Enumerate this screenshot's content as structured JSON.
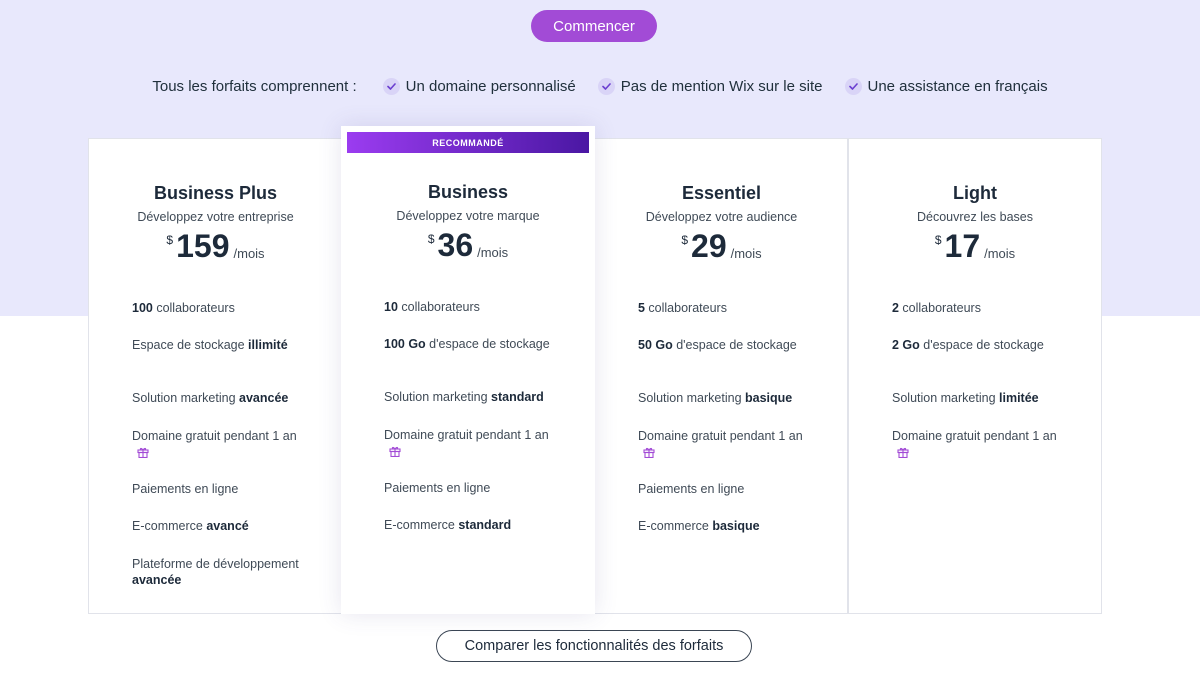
{
  "header": {
    "start_label": "Commencer",
    "includes_lead": "Tous les forfaits comprennent :",
    "includes": [
      "Un domaine personnalisé",
      "Pas de mention Wix sur le site",
      "Une assistance en français"
    ]
  },
  "recommended_badge": "RECOMMANDÉ",
  "currency": "$",
  "plans": [
    {
      "name": "Business Plus",
      "tagline": "Développez votre entreprise",
      "price": "159",
      "period": "/mois",
      "features": [
        {
          "pre": "",
          "bold": "100",
          "post": " collaborateurs"
        },
        {
          "pre": "Espace de stockage ",
          "bold": "illimité",
          "post": ""
        },
        {
          "pre": "Solution marketing ",
          "bold": "avancée",
          "post": ""
        },
        {
          "pre": "Domaine gratuit pendant 1 an",
          "bold": "",
          "post": ""
        },
        {
          "pre": "Paiements en ligne",
          "bold": "",
          "post": ""
        },
        {
          "pre": "E-commerce ",
          "bold": "avancé",
          "post": ""
        },
        {
          "pre": "Plateforme de développement ",
          "bold": "avancée",
          "post": ""
        }
      ]
    },
    {
      "name": "Business",
      "tagline": "Développez votre marque",
      "price": "36",
      "period": "/mois",
      "features": [
        {
          "pre": "",
          "bold": "10",
          "post": " collaborateurs"
        },
        {
          "pre": "",
          "bold": "100 Go",
          "post": " d'espace de stockage"
        },
        {
          "pre": "Solution marketing ",
          "bold": "standard",
          "post": ""
        },
        {
          "pre": "Domaine gratuit pendant 1 an",
          "bold": "",
          "post": ""
        },
        {
          "pre": "Paiements en ligne",
          "bold": "",
          "post": ""
        },
        {
          "pre": "E-commerce ",
          "bold": "standard",
          "post": ""
        }
      ]
    },
    {
      "name": "Essentiel",
      "tagline": "Développez votre audience",
      "price": "29",
      "period": "/mois",
      "features": [
        {
          "pre": "",
          "bold": "5",
          "post": " collaborateurs"
        },
        {
          "pre": "",
          "bold": "50 Go",
          "post": " d'espace de stockage"
        },
        {
          "pre": "Solution marketing ",
          "bold": "basique",
          "post": ""
        },
        {
          "pre": "Domaine gratuit pendant 1 an",
          "bold": "",
          "post": ""
        },
        {
          "pre": "Paiements en ligne",
          "bold": "",
          "post": ""
        },
        {
          "pre": "E-commerce ",
          "bold": "basique",
          "post": ""
        }
      ]
    },
    {
      "name": "Light",
      "tagline": "Découvrez les bases",
      "price": "17",
      "period": "/mois",
      "features": [
        {
          "pre": "",
          "bold": "2",
          "post": " collaborateurs"
        },
        {
          "pre": "",
          "bold": "2 Go",
          "post": " d'espace de stockage"
        },
        {
          "pre": "Solution marketing ",
          "bold": "limitée",
          "post": ""
        },
        {
          "pre": "Domaine gratuit pendant 1 an",
          "bold": "",
          "post": ""
        }
      ]
    }
  ],
  "compare_label": "Comparer les fonctionnalités des forfaits",
  "colors": {
    "accent": "#a24bd6",
    "band": "#e8e8fc",
    "badge_start": "#9b3cf0",
    "badge_end": "#4a17a3"
  }
}
